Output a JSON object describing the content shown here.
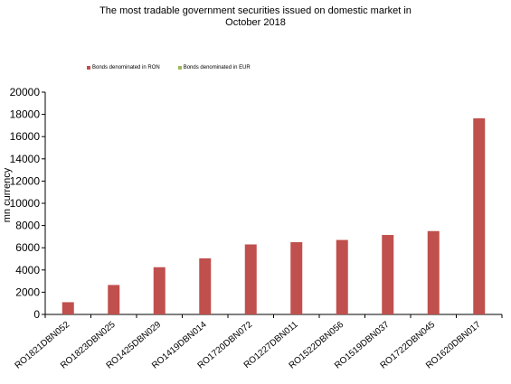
{
  "chart_data": {
    "type": "bar",
    "title_lines": [
      "The most  tradable government securities issued on domestic market in",
      "October 2018"
    ],
    "ylabel": "mn currency",
    "legend": [
      {
        "label": "Bonds denominated in RON",
        "color": "#c0504d"
      },
      {
        "label": "Bonds denominated in EUR",
        "color": "#9bbb59"
      }
    ],
    "categories": [
      "RO1821DBN052",
      "RO1823DBN025",
      "RO1425DBN029",
      "RO1419DBN014",
      "RO1720DBN072",
      "RO1227DBN011",
      "RO1522DBN056",
      "RO1519DBN037",
      "RO1722DBN045",
      "RO1620DBN017"
    ],
    "series": [
      {
        "name": "Bonds denominated in RON",
        "color": "#c0504d",
        "values": [
          1100,
          2650,
          4250,
          5050,
          6300,
          6500,
          6700,
          7150,
          7500,
          17650
        ]
      }
    ],
    "ylim": [
      0,
      20000
    ],
    "yticks": [
      0,
      2000,
      4000,
      6000,
      8000,
      10000,
      12000,
      14000,
      16000,
      18000,
      20000
    ],
    "grid": false,
    "legend_position": "top-center"
  }
}
